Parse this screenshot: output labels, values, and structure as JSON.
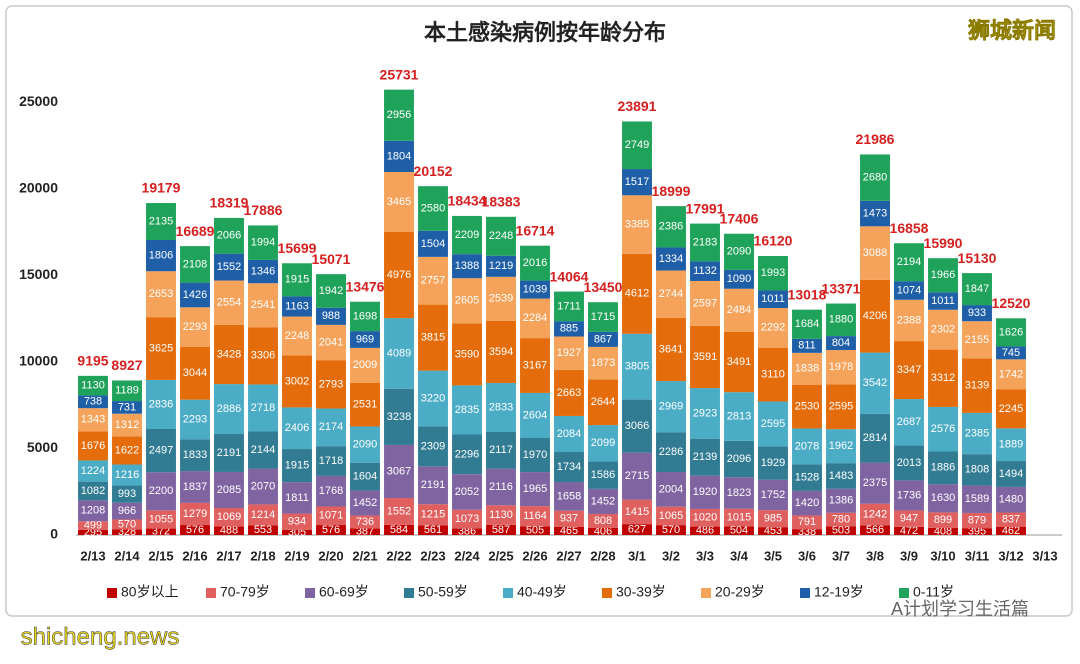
{
  "chart_data": {
    "type": "bar",
    "stacked": true,
    "title": "本土感染病例按年龄分布",
    "annotations": [
      "狮城新闻",
      "shicheng.news",
      "A计划学习生活篇"
    ],
    "categories": [
      "2/13",
      "2/14",
      "2/15",
      "2/16",
      "2/17",
      "2/18",
      "2/19",
      "2/20",
      "2/21",
      "2/22",
      "2/23",
      "2/24",
      "2/25",
      "2/26",
      "2/27",
      "2/28",
      "3/1",
      "3/2",
      "3/3",
      "3/4",
      "3/5",
      "3/6",
      "3/7",
      "3/8",
      "3/9",
      "3/10",
      "3/11",
      "3/12",
      "3/13"
    ],
    "series": [
      {
        "name": "80岁以上",
        "color": "#c00000",
        "values": [
          295,
          328,
          372,
          576,
          488,
          553,
          305,
          576,
          387,
          584,
          561,
          386,
          587,
          505,
          465,
          406,
          627,
          570,
          486,
          504,
          453,
          338,
          503,
          566,
          472,
          408,
          395,
          462,
          null
        ]
      },
      {
        "name": "70-79岁",
        "color": "#e06060",
        "values": [
          499,
          570,
          1055,
          1279,
          1069,
          1214,
          934,
          1071,
          736,
          1552,
          1215,
          1073,
          1130,
          1164,
          937,
          808,
          1415,
          1065,
          1020,
          1015,
          985,
          791,
          780,
          1242,
          947,
          899,
          879,
          837,
          null
        ]
      },
      {
        "name": "60-69岁",
        "color": "#8064a2",
        "values": [
          1208,
          966,
          2200,
          1837,
          2085,
          2070,
          1811,
          1768,
          1452,
          3067,
          2191,
          2052,
          2116,
          1965,
          1658,
          1452,
          2715,
          2004,
          1920,
          1823,
          1752,
          1420,
          1386,
          2375,
          1736,
          1630,
          1589,
          1480,
          null
        ]
      },
      {
        "name": "50-59岁",
        "color": "#317b93",
        "values": [
          1082,
          993,
          2497,
          1833,
          2191,
          2144,
          1915,
          1718,
          1604,
          3238,
          2309,
          2296,
          2117,
          1970,
          1734,
          1586,
          3066,
          2286,
          2139,
          2096,
          1929,
          1528,
          1483,
          2814,
          2013,
          1886,
          1808,
          1494,
          null
        ]
      },
      {
        "name": "40-49岁",
        "color": "#4bacc6",
        "values": [
          1224,
          1216,
          2836,
          2293,
          2886,
          2718,
          2406,
          2174,
          2090,
          4089,
          3220,
          2835,
          2833,
          2604,
          2084,
          2099,
          3805,
          2969,
          2923,
          2813,
          2595,
          2078,
          1962,
          3542,
          2687,
          2576,
          2385,
          1889,
          null
        ]
      },
      {
        "name": "30-39岁",
        "color": "#e46c0a",
        "values": [
          1676,
          1622,
          3625,
          3044,
          3428,
          3306,
          3002,
          2793,
          2531,
          4976,
          3815,
          3590,
          3594,
          3167,
          2663,
          2644,
          4612,
          3641,
          3591,
          3491,
          3110,
          2530,
          2595,
          4206,
          3347,
          3312,
          3139,
          2245,
          null
        ]
      },
      {
        "name": "20-29岁",
        "color": "#f5a35a",
        "values": [
          1343,
          1312,
          2653,
          2293,
          2554,
          2541,
          2248,
          2041,
          2009,
          3465,
          2757,
          2605,
          2539,
          2284,
          1927,
          1873,
          3385,
          2744,
          2597,
          2484,
          2292,
          1838,
          1978,
          3088,
          2388,
          2302,
          2155,
          1742,
          null
        ]
      },
      {
        "name": "12-19岁",
        "color": "#1f5fa8",
        "values": [
          738,
          731,
          1806,
          1426,
          1552,
          1346,
          1163,
          988,
          969,
          1804,
          1504,
          1388,
          1219,
          1039,
          885,
          867,
          1517,
          1334,
          1132,
          1090,
          1011,
          811,
          804,
          1473,
          1074,
          1011,
          933,
          745,
          null
        ]
      },
      {
        "name": "0-11岁",
        "color": "#1fa35a",
        "values": [
          1130,
          1189,
          2135,
          2108,
          2066,
          1994,
          1915,
          1942,
          1698,
          2956,
          2580,
          2209,
          2248,
          2016,
          1711,
          1715,
          2749,
          2386,
          2183,
          2090,
          1993,
          1684,
          1880,
          2680,
          2194,
          1966,
          1847,
          1626,
          null
        ]
      }
    ],
    "totals": [
      9195,
      8927,
      19179,
      16689,
      18319,
      17886,
      15699,
      15071,
      13476,
      25731,
      20152,
      18434,
      18383,
      16714,
      14064,
      13450,
      23891,
      18999,
      17991,
      17406,
      16120,
      13018,
      13371,
      21986,
      16858,
      15990,
      15130,
      12520,
      null
    ],
    "ylim": [
      0,
      27500
    ],
    "yticks": [
      0,
      5000,
      10000,
      15000,
      20000,
      25000
    ],
    "grid": false,
    "legend": "bottom"
  }
}
